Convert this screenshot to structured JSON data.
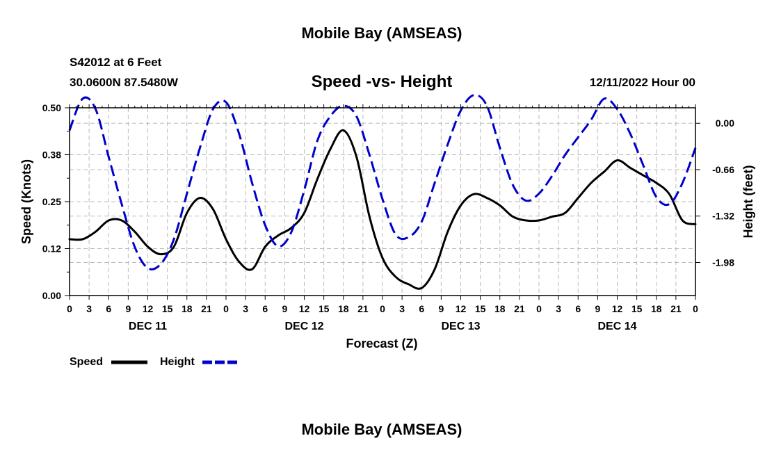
{
  "page": {
    "title": "Mobile Bay (AMSEAS)",
    "bottom_title": "Mobile Bay (AMSEAS)",
    "station": "S42012 at 6 Feet",
    "coords": "30.0600N  87.5480W",
    "subtitle": "Speed -vs- Height",
    "datetime": "12/11/2022 Hour 00"
  },
  "chart_data": {
    "type": "line",
    "title": "Speed -vs- Height",
    "xlabel": "Forecast (Z)",
    "ylabel_left": "Speed (Knots)",
    "ylabel_right": "Height (feet)",
    "x_range_hours": [
      0,
      96
    ],
    "y_left_lim": [
      0.0,
      0.5
    ],
    "y_right_lim": [
      -2.45,
      0.22
    ],
    "y_left_ticks": [
      "0.00",
      "0.12",
      "0.25",
      "0.38",
      "0.50"
    ],
    "y_left_tick_values": [
      0.0,
      0.125,
      0.25,
      0.375,
      0.5
    ],
    "y_right_ticks": [
      "0.00",
      "-0.66",
      "-1.32",
      "-1.98"
    ],
    "y_right_tick_values": [
      0.0,
      -0.66,
      -1.32,
      -1.98
    ],
    "x_tick_labels": [
      "0",
      "3",
      "6",
      "9",
      "12",
      "15",
      "18",
      "21",
      "0",
      "3",
      "6",
      "9",
      "12",
      "15",
      "18",
      "21",
      "0",
      "3",
      "6",
      "9",
      "12",
      "15",
      "18",
      "21",
      "0",
      "3",
      "6",
      "9",
      "12",
      "15",
      "18",
      "21",
      "0"
    ],
    "day_labels": [
      {
        "label": "DEC 11",
        "hour": 12
      },
      {
        "label": "DEC 12",
        "hour": 36
      },
      {
        "label": "DEC 13",
        "hour": 60
      },
      {
        "label": "DEC 14",
        "hour": 84
      }
    ],
    "grid": true,
    "legend": {
      "position": "bottom-left",
      "speed": "Speed",
      "height": "Height"
    },
    "series": [
      {
        "name": "Speed",
        "color": "#000000",
        "dash": "solid",
        "axis": "left",
        "x": [
          0,
          2,
          4,
          6,
          8,
          10,
          12,
          14,
          16,
          18,
          20,
          22,
          24,
          26,
          28,
          30,
          32,
          34,
          36,
          38,
          40,
          42,
          44,
          46,
          48,
          50,
          52,
          54,
          56,
          58,
          60,
          62,
          64,
          66,
          68,
          70,
          72,
          74,
          76,
          78,
          80,
          82,
          84,
          86,
          88,
          90,
          92,
          94,
          96
        ],
        "values": [
          0.15,
          0.15,
          0.17,
          0.2,
          0.2,
          0.17,
          0.13,
          0.11,
          0.13,
          0.22,
          0.26,
          0.23,
          0.15,
          0.09,
          0.07,
          0.13,
          0.16,
          0.18,
          0.22,
          0.31,
          0.39,
          0.44,
          0.37,
          0.21,
          0.1,
          0.05,
          0.03,
          0.02,
          0.07,
          0.17,
          0.24,
          0.27,
          0.26,
          0.24,
          0.21,
          0.2,
          0.2,
          0.21,
          0.22,
          0.26,
          0.3,
          0.33,
          0.36,
          0.34,
          0.32,
          0.3,
          0.27,
          0.2,
          0.19
        ]
      },
      {
        "name": "Height",
        "color": "#0000cc",
        "dash": "dashed",
        "axis": "right",
        "x": [
          0,
          2,
          4,
          6,
          8,
          10,
          12,
          14,
          16,
          18,
          20,
          22,
          24,
          26,
          28,
          30,
          32,
          34,
          36,
          38,
          40,
          42,
          44,
          46,
          48,
          50,
          52,
          54,
          56,
          58,
          60,
          62,
          64,
          66,
          68,
          70,
          72,
          74,
          76,
          78,
          80,
          82,
          84,
          86,
          88,
          90,
          92,
          94,
          96
        ],
        "values": [
          -0.1,
          0.35,
          0.2,
          -0.48,
          -1.15,
          -1.76,
          -2.06,
          -2.0,
          -1.65,
          -1.0,
          -0.35,
          0.2,
          0.3,
          -0.15,
          -0.85,
          -1.45,
          -1.75,
          -1.55,
          -0.95,
          -0.25,
          0.1,
          0.25,
          0.1,
          -0.45,
          -1.08,
          -1.58,
          -1.62,
          -1.4,
          -0.85,
          -0.3,
          0.18,
          0.4,
          0.25,
          -0.35,
          -0.88,
          -1.1,
          -1.0,
          -0.75,
          -0.45,
          -0.2,
          0.05,
          0.35,
          0.2,
          -0.15,
          -0.6,
          -1.05,
          -1.15,
          -0.85,
          -0.35
        ]
      }
    ]
  }
}
